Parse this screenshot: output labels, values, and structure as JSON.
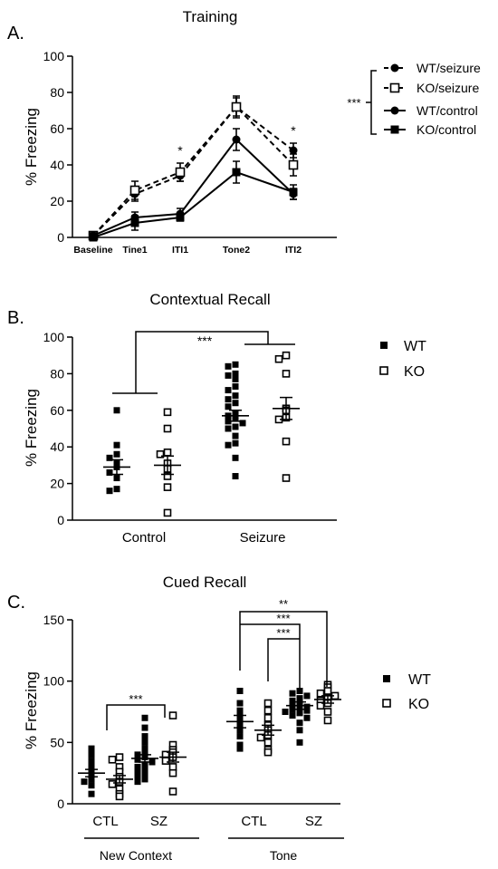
{
  "chart_data": [
    {
      "type": "line",
      "panel_label": "A.",
      "title": "Training",
      "ylabel": "% Freezing",
      "categories": [
        "Baseline",
        "Tine1",
        "ITI1",
        "Tone2",
        "ITI2"
      ],
      "ylim": [
        0,
        100
      ],
      "yticks": [
        "0",
        "20",
        "40",
        "60",
        "80",
        "100"
      ],
      "series": [
        {
          "name": "WT/seizure",
          "marker": "circle-filled",
          "line": "dashed",
          "values": [
            1,
            24,
            34,
            72,
            48
          ],
          "errors": [
            1.5,
            4,
            3,
            5,
            4
          ]
        },
        {
          "name": "KO/seizure",
          "marker": "square-open",
          "line": "dashed",
          "values": [
            1,
            26,
            36,
            72,
            40
          ],
          "errors": [
            1.5,
            5,
            5,
            6,
            6
          ]
        },
        {
          "name": "WT/control",
          "marker": "circle-filled",
          "line": "solid",
          "values": [
            1,
            11,
            13,
            54,
            24
          ],
          "errors": [
            1.5,
            3,
            3,
            6,
            3
          ]
        },
        {
          "name": "KO/control",
          "marker": "square-filled",
          "line": "solid",
          "values": [
            0,
            8,
            11,
            36,
            25
          ],
          "errors": [
            1.5,
            4,
            2,
            6,
            4
          ]
        }
      ],
      "sig_markers": [
        {
          "category": "ITI1",
          "label": "*"
        },
        {
          "category": "ITI2",
          "label": "*"
        }
      ],
      "legend_sig": "***"
    },
    {
      "type": "scatter",
      "panel_label": "B.",
      "title": "Contextual Recall",
      "ylabel": "% Freezing",
      "categories": [
        "Control",
        "Seizure"
      ],
      "ylim": [
        0,
        100
      ],
      "yticks": [
        "0",
        "20",
        "40",
        "60",
        "80",
        "100"
      ],
      "series": [
        {
          "name": "WT",
          "marker": "square-filled",
          "groups": [
            {
              "category": "Control",
              "mean": 29,
              "sem": 4,
              "values": [
                60,
                41,
                36,
                34,
                31,
                29,
                26,
                23,
                17,
                16
              ]
            },
            {
              "category": "Seizure",
              "mean": 57,
              "sem": 3,
              "values": [
                85,
                84,
                80,
                79,
                77,
                73,
                71,
                68,
                66,
                64,
                62,
                58,
                57,
                56,
                54,
                53,
                51,
                50,
                46,
                42,
                41,
                34,
                24
              ]
            }
          ]
        },
        {
          "name": "KO",
          "marker": "square-open",
          "groups": [
            {
              "category": "Control",
              "mean": 30,
              "sem": 5,
              "values": [
                59,
                50,
                37,
                36,
                31,
                28,
                24,
                18,
                4
              ]
            },
            {
              "category": "Seizure",
              "mean": 61,
              "sem": 6,
              "values": [
                90,
                88,
                80,
                61,
                60,
                56,
                55,
                43,
                23
              ]
            }
          ]
        }
      ],
      "significance": [
        {
          "label": "***"
        }
      ]
    },
    {
      "type": "scatter",
      "panel_label": "C.",
      "title": "Cued Recall",
      "ylabel": "% Freezing",
      "categories": [
        "CTL",
        "SZ",
        "CTL",
        "SZ"
      ],
      "group_labels": [
        {
          "label": "New Context"
        },
        {
          "label": "Tone"
        }
      ],
      "ylim": [
        0,
        150
      ],
      "yticks": [
        "0",
        "50",
        "100",
        "150"
      ],
      "series": [
        {
          "name": "WT",
          "marker": "square-filled",
          "groups": [
            {
              "group": "New Context",
              "category": "CTL",
              "mean": 25,
              "sem": 3,
              "values": [
                45,
                40,
                35,
                30,
                28,
                24,
                20,
                18,
                15,
                8
              ]
            },
            {
              "group": "New Context",
              "category": "SZ",
              "mean": 37,
              "sem": 3,
              "values": [
                70,
                62,
                55,
                50,
                45,
                42,
                40,
                38,
                36,
                34,
                32,
                30,
                28,
                26,
                24,
                22,
                20,
                18
              ]
            },
            {
              "group": "Tone",
              "category": "CTL",
              "mean": 67,
              "sem": 5,
              "values": [
                92,
                82,
                76,
                72,
                68,
                65,
                60,
                55,
                48,
                45
              ]
            },
            {
              "group": "Tone",
              "category": "SZ",
              "mean": 80,
              "sem": 3,
              "values": [
                92,
                90,
                88,
                86,
                84,
                82,
                80,
                79,
                78,
                77,
                76,
                75,
                74,
                72,
                70,
                66,
                60,
                50
              ]
            }
          ]
        },
        {
          "name": "KO",
          "marker": "square-open",
          "groups": [
            {
              "group": "New Context",
              "category": "CTL",
              "mean": 20,
              "sem": 3,
              "values": [
                38,
                36,
                30,
                26,
                22,
                18,
                16,
                12,
                8,
                6
              ]
            },
            {
              "group": "New Context",
              "category": "SZ",
              "mean": 38,
              "sem": 4,
              "values": [
                72,
                48,
                44,
                42,
                40,
                38,
                35,
                30,
                25,
                10
              ]
            },
            {
              "group": "Tone",
              "category": "CTL",
              "mean": 60,
              "sem": 4,
              "values": [
                82,
                76,
                70,
                64,
                60,
                56,
                54,
                50,
                44,
                42
              ]
            },
            {
              "group": "Tone",
              "category": "SZ",
              "mean": 85,
              "sem": 3,
              "values": [
                97,
                95,
                92,
                90,
                88,
                86,
                84,
                82,
                80,
                75,
                68
              ]
            }
          ]
        }
      ],
      "significance": [
        {
          "label": "***"
        },
        {
          "label": "**"
        },
        {
          "label": "***"
        },
        {
          "label": "***"
        }
      ]
    }
  ]
}
